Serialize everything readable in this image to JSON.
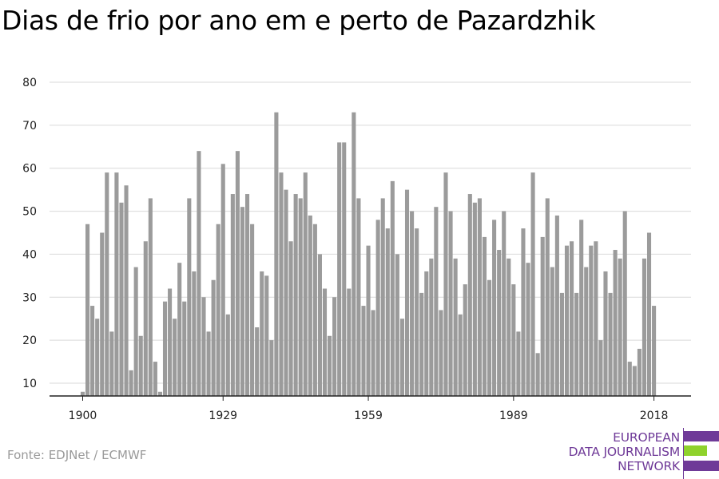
{
  "title": "Dias de frio por ano em e perto de Pazardzhik",
  "source": "Fonte: EDJNet / ECMWF",
  "logo": {
    "line1": "EUROPEAN",
    "line2": "DATA JOURNALISM",
    "line3": "NETWORK",
    "colors": {
      "purple": "#6f3a98",
      "green": "#8fd22c"
    }
  },
  "colors": {
    "bar": "#9b9b9b",
    "grid": "#d9d9d9",
    "axis": "#222222",
    "text": "#222222"
  },
  "chart_data": {
    "type": "bar",
    "title": "Dias de frio por ano em e perto de Pazardzhik",
    "xlabel": "",
    "ylabel": "",
    "ylim": [
      7,
      80
    ],
    "yticks": [
      10,
      20,
      30,
      40,
      50,
      60,
      70,
      80
    ],
    "xticks": [
      1900,
      1929,
      1959,
      1989,
      2018
    ],
    "grid": true,
    "x": [
      1900,
      1901,
      1902,
      1903,
      1904,
      1905,
      1906,
      1907,
      1908,
      1909,
      1910,
      1911,
      1912,
      1913,
      1914,
      1915,
      1916,
      1917,
      1918,
      1919,
      1920,
      1921,
      1922,
      1923,
      1924,
      1925,
      1926,
      1927,
      1928,
      1929,
      1930,
      1931,
      1932,
      1933,
      1934,
      1935,
      1936,
      1937,
      1938,
      1939,
      1940,
      1941,
      1942,
      1943,
      1944,
      1945,
      1946,
      1947,
      1948,
      1949,
      1950,
      1951,
      1952,
      1953,
      1954,
      1955,
      1956,
      1957,
      1958,
      1959,
      1960,
      1961,
      1962,
      1963,
      1964,
      1965,
      1966,
      1967,
      1968,
      1969,
      1970,
      1971,
      1972,
      1973,
      1974,
      1975,
      1976,
      1977,
      1978,
      1979,
      1980,
      1981,
      1982,
      1983,
      1984,
      1985,
      1986,
      1987,
      1988,
      1989,
      1990,
      1991,
      1992,
      1993,
      1994,
      1995,
      1996,
      1997,
      1998,
      1999,
      2000,
      2001,
      2002,
      2003,
      2004,
      2005,
      2006,
      2007,
      2008,
      2009,
      2010,
      2011,
      2012,
      2013,
      2014,
      2015,
      2016,
      2017,
      2018
    ],
    "values": [
      8,
      47,
      28,
      25,
      45,
      59,
      22,
      59,
      52,
      56,
      13,
      37,
      21,
      43,
      53,
      15,
      8,
      29,
      32,
      25,
      38,
      29,
      53,
      36,
      64,
      30,
      22,
      34,
      47,
      61,
      26,
      54,
      64,
      51,
      54,
      47,
      23,
      36,
      35,
      20,
      73,
      59,
      55,
      43,
      54,
      53,
      59,
      49,
      47,
      40,
      32,
      21,
      30,
      66,
      66,
      32,
      73,
      53,
      28,
      42,
      27,
      48,
      53,
      46,
      57,
      40,
      25,
      55,
      50,
      46,
      31,
      36,
      39,
      51,
      27,
      59,
      50,
      39,
      26,
      33,
      54,
      52,
      53,
      44,
      34,
      48,
      41,
      50,
      39,
      33,
      22,
      46,
      38,
      59,
      17,
      44,
      53,
      37,
      49,
      31,
      42,
      43,
      31,
      48,
      37,
      42,
      43,
      20,
      36,
      31,
      41,
      39,
      50,
      15,
      14,
      18,
      39,
      45,
      28
    ]
  }
}
